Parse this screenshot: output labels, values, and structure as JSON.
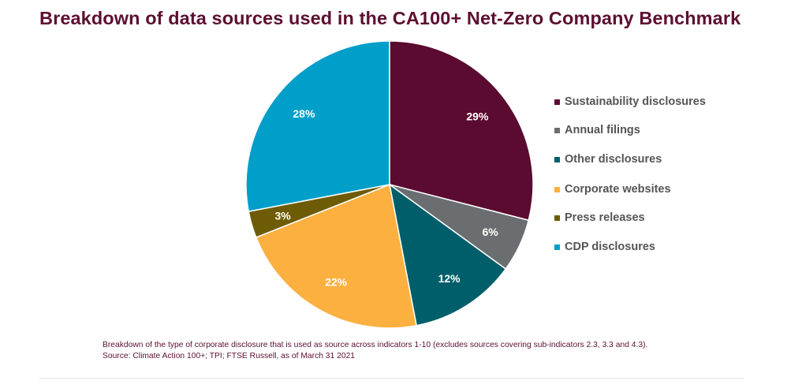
{
  "title": "Breakdown of data sources used in the CA100+ Net-Zero Company Benchmark",
  "chart_data": {
    "type": "pie",
    "title": "Breakdown of data sources used in the CA100+ Net-Zero Company Benchmark",
    "slices": [
      {
        "label": "Sustainability disclosures",
        "value": 29,
        "display": "29%",
        "color": "#5a0b2f"
      },
      {
        "label": "Annual filings",
        "value": 6,
        "display": "6%",
        "color": "#6b6e70"
      },
      {
        "label": "Other disclosures",
        "value": 12,
        "display": "12%",
        "color": "#005e6b"
      },
      {
        "label": "Corporate websites",
        "value": 22,
        "display": "22%",
        "color": "#fbb040"
      },
      {
        "label": "Press releases",
        "value": 3,
        "display": "3%",
        "color": "#6d5c05"
      },
      {
        "label": "CDP disclosures",
        "value": 28,
        "display": "28%",
        "color": "#009fca"
      }
    ],
    "start": "12 o'clock",
    "direction": "clockwise",
    "legend_position": "right"
  },
  "legend": {
    "items": [
      {
        "label": "Sustainability disclosures",
        "color": "#5a0b2f"
      },
      {
        "label": "Annual filings",
        "color": "#6b6e70"
      },
      {
        "label": "Other disclosures",
        "color": "#005e6b"
      },
      {
        "label": "Corporate websites",
        "color": "#fbb040"
      },
      {
        "label": "Press releases",
        "color": "#6d5c05"
      },
      {
        "label": "CDP disclosures",
        "color": "#009fca"
      }
    ]
  },
  "caption": {
    "line1": "Breakdown of the type of corporate disclosure that is used as source across indicators 1-10 (excludes sources covering sub-indicators 2.3, 3.3 and 4.3).",
    "line2": "Source: Climate Action 100+; TPI; FTSE Russell, as of March 31 2021"
  },
  "colors": {
    "title": "#5c0f31",
    "caption": "#5c0f31",
    "legend_text": "#555555"
  }
}
